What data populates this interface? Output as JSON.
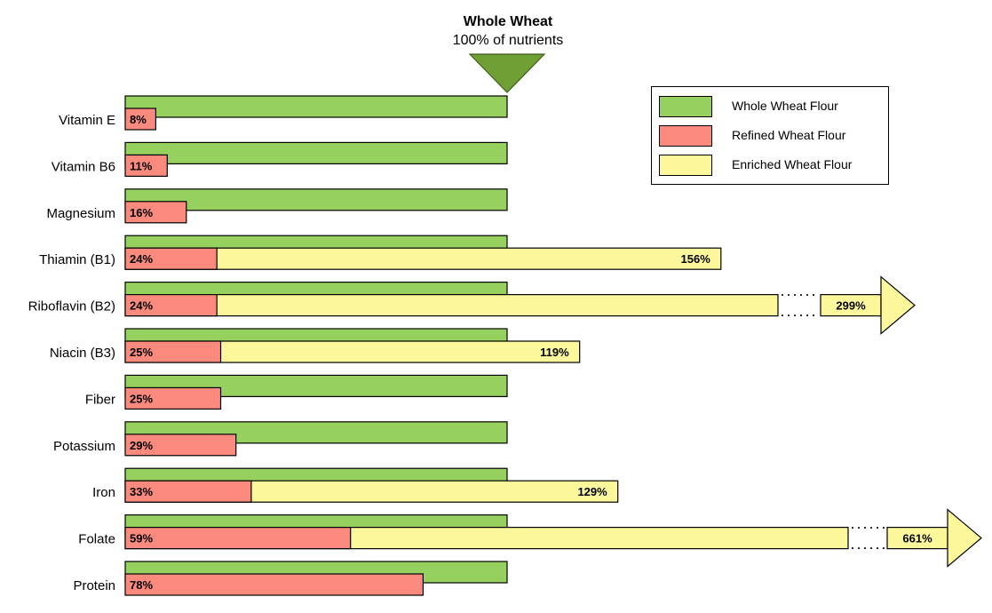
{
  "header": {
    "title": "Whole Wheat",
    "subtitle": "100% of nutrients"
  },
  "legend": {
    "items": [
      {
        "label": "Whole Wheat Flour",
        "color": "#96d160"
      },
      {
        "label": "Refined Wheat Flour",
        "color": "#fa8a7e"
      },
      {
        "label": "Enriched Wheat Flour",
        "color": "#fbf79a"
      }
    ]
  },
  "chart_data": {
    "type": "bar",
    "title": "Whole Wheat",
    "subtitle": "100% of nutrients",
    "xlabel": "",
    "ylabel": "",
    "unit": "%",
    "grid": false,
    "legend_position": "top-right",
    "categories": [
      "Vitamin E",
      "Vitamin B6",
      "Magnesium",
      "Thiamin (B1)",
      "Riboflavin (B2)",
      "Niacin (B3)",
      "Fiber",
      "Potassium",
      "Iron",
      "Folate",
      "Protein"
    ],
    "series": [
      {
        "name": "Whole Wheat Flour",
        "color": "#96d160",
        "values": [
          100,
          100,
          100,
          100,
          100,
          100,
          100,
          100,
          100,
          100,
          100
        ]
      },
      {
        "name": "Refined Wheat Flour",
        "color": "#fa8a7e",
        "values": [
          8,
          11,
          16,
          24,
          24,
          25,
          25,
          29,
          33,
          59,
          78
        ],
        "labels": [
          "8%",
          "11%",
          "16%",
          "24%",
          "24%",
          "25%",
          "25%",
          "29%",
          "33%",
          "59%",
          "78%"
        ]
      },
      {
        "name": "Enriched Wheat Flour",
        "color": "#fbf79a",
        "values": [
          null,
          null,
          null,
          156,
          299,
          119,
          null,
          null,
          129,
          661,
          null
        ],
        "labels": [
          null,
          null,
          null,
          "156%",
          "299%",
          "119%",
          null,
          null,
          "129%",
          "661%",
          null
        ]
      }
    ]
  }
}
